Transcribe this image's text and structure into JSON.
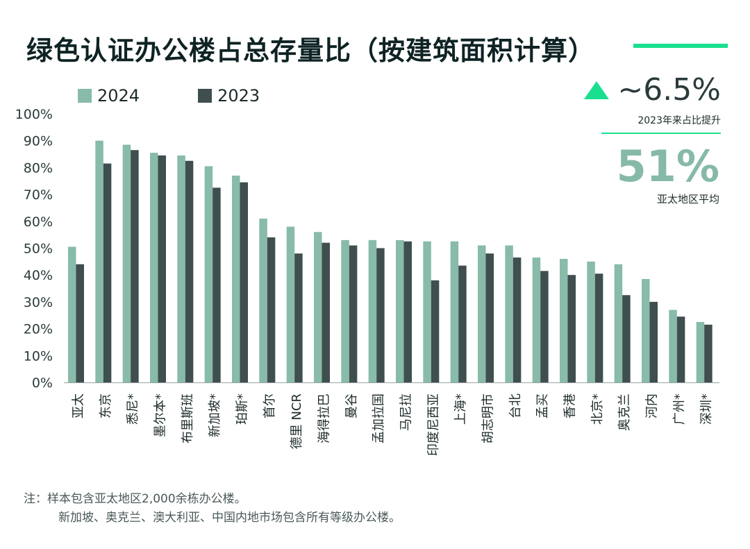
{
  "title": "绿色认证办公楼占总存量比（按建筑面积计算）",
  "colors": {
    "series_2024": "#88bba9",
    "series_2023": "#3f4e4f",
    "accent": "#19e08e",
    "avg_text": "#86b9a8"
  },
  "legend": {
    "series_2024": "2024",
    "series_2023": "2023"
  },
  "kpi": {
    "increase_value": "~6.5%",
    "increase_label": "2023年来占比提升",
    "average_value": "51%",
    "average_label": "亚太地区平均"
  },
  "notes": {
    "line1": "注：样本包含亚太地区2,000余栋办公楼。",
    "line2": "新加坡、奥克兰、澳大利亚、中国内地市场包含所有等级办公楼。"
  },
  "chart_data": {
    "type": "bar",
    "title": "绿色认证办公楼占总存量比（按建筑面积计算）",
    "xlabel": "",
    "ylabel": "",
    "ylim": [
      0,
      100
    ],
    "yticks": [
      0,
      10,
      20,
      30,
      40,
      50,
      60,
      70,
      80,
      90,
      100
    ],
    "ytick_labels": [
      "0%",
      "10%",
      "20%",
      "30%",
      "40%",
      "50%",
      "60%",
      "70%",
      "80%",
      "90%",
      "100%"
    ],
    "grid": false,
    "legend_position": "top-left",
    "categories": [
      "亚太",
      "东京",
      "悉尼*",
      "墨尔本*",
      "布里斯班",
      "新加坡*",
      "珀斯*",
      "首尔",
      "德里 NCR",
      "海得拉巴",
      "曼谷",
      "孟加拉国",
      "马尼拉",
      "印度尼西亚",
      "上海*",
      "胡志明市",
      "台北",
      "孟买",
      "香港",
      "北京*",
      "奥克兰",
      "河内",
      "广州*",
      "深圳*"
    ],
    "series": [
      {
        "name": "2024",
        "values": [
          50.5,
          90,
          88.5,
          85.5,
          84.5,
          80.5,
          77,
          61,
          58,
          56,
          53,
          53,
          53,
          52.5,
          52.5,
          51,
          51,
          46.5,
          46,
          45,
          44,
          38.5,
          27,
          22.5
        ]
      },
      {
        "name": "2023",
        "values": [
          44,
          81.5,
          86.5,
          84.5,
          82.5,
          72.5,
          74.5,
          54,
          48,
          52,
          51,
          50,
          52.5,
          38,
          43.5,
          48,
          46.5,
          41.5,
          40,
          40.5,
          32.5,
          30,
          24.5,
          21.5
        ]
      }
    ]
  }
}
